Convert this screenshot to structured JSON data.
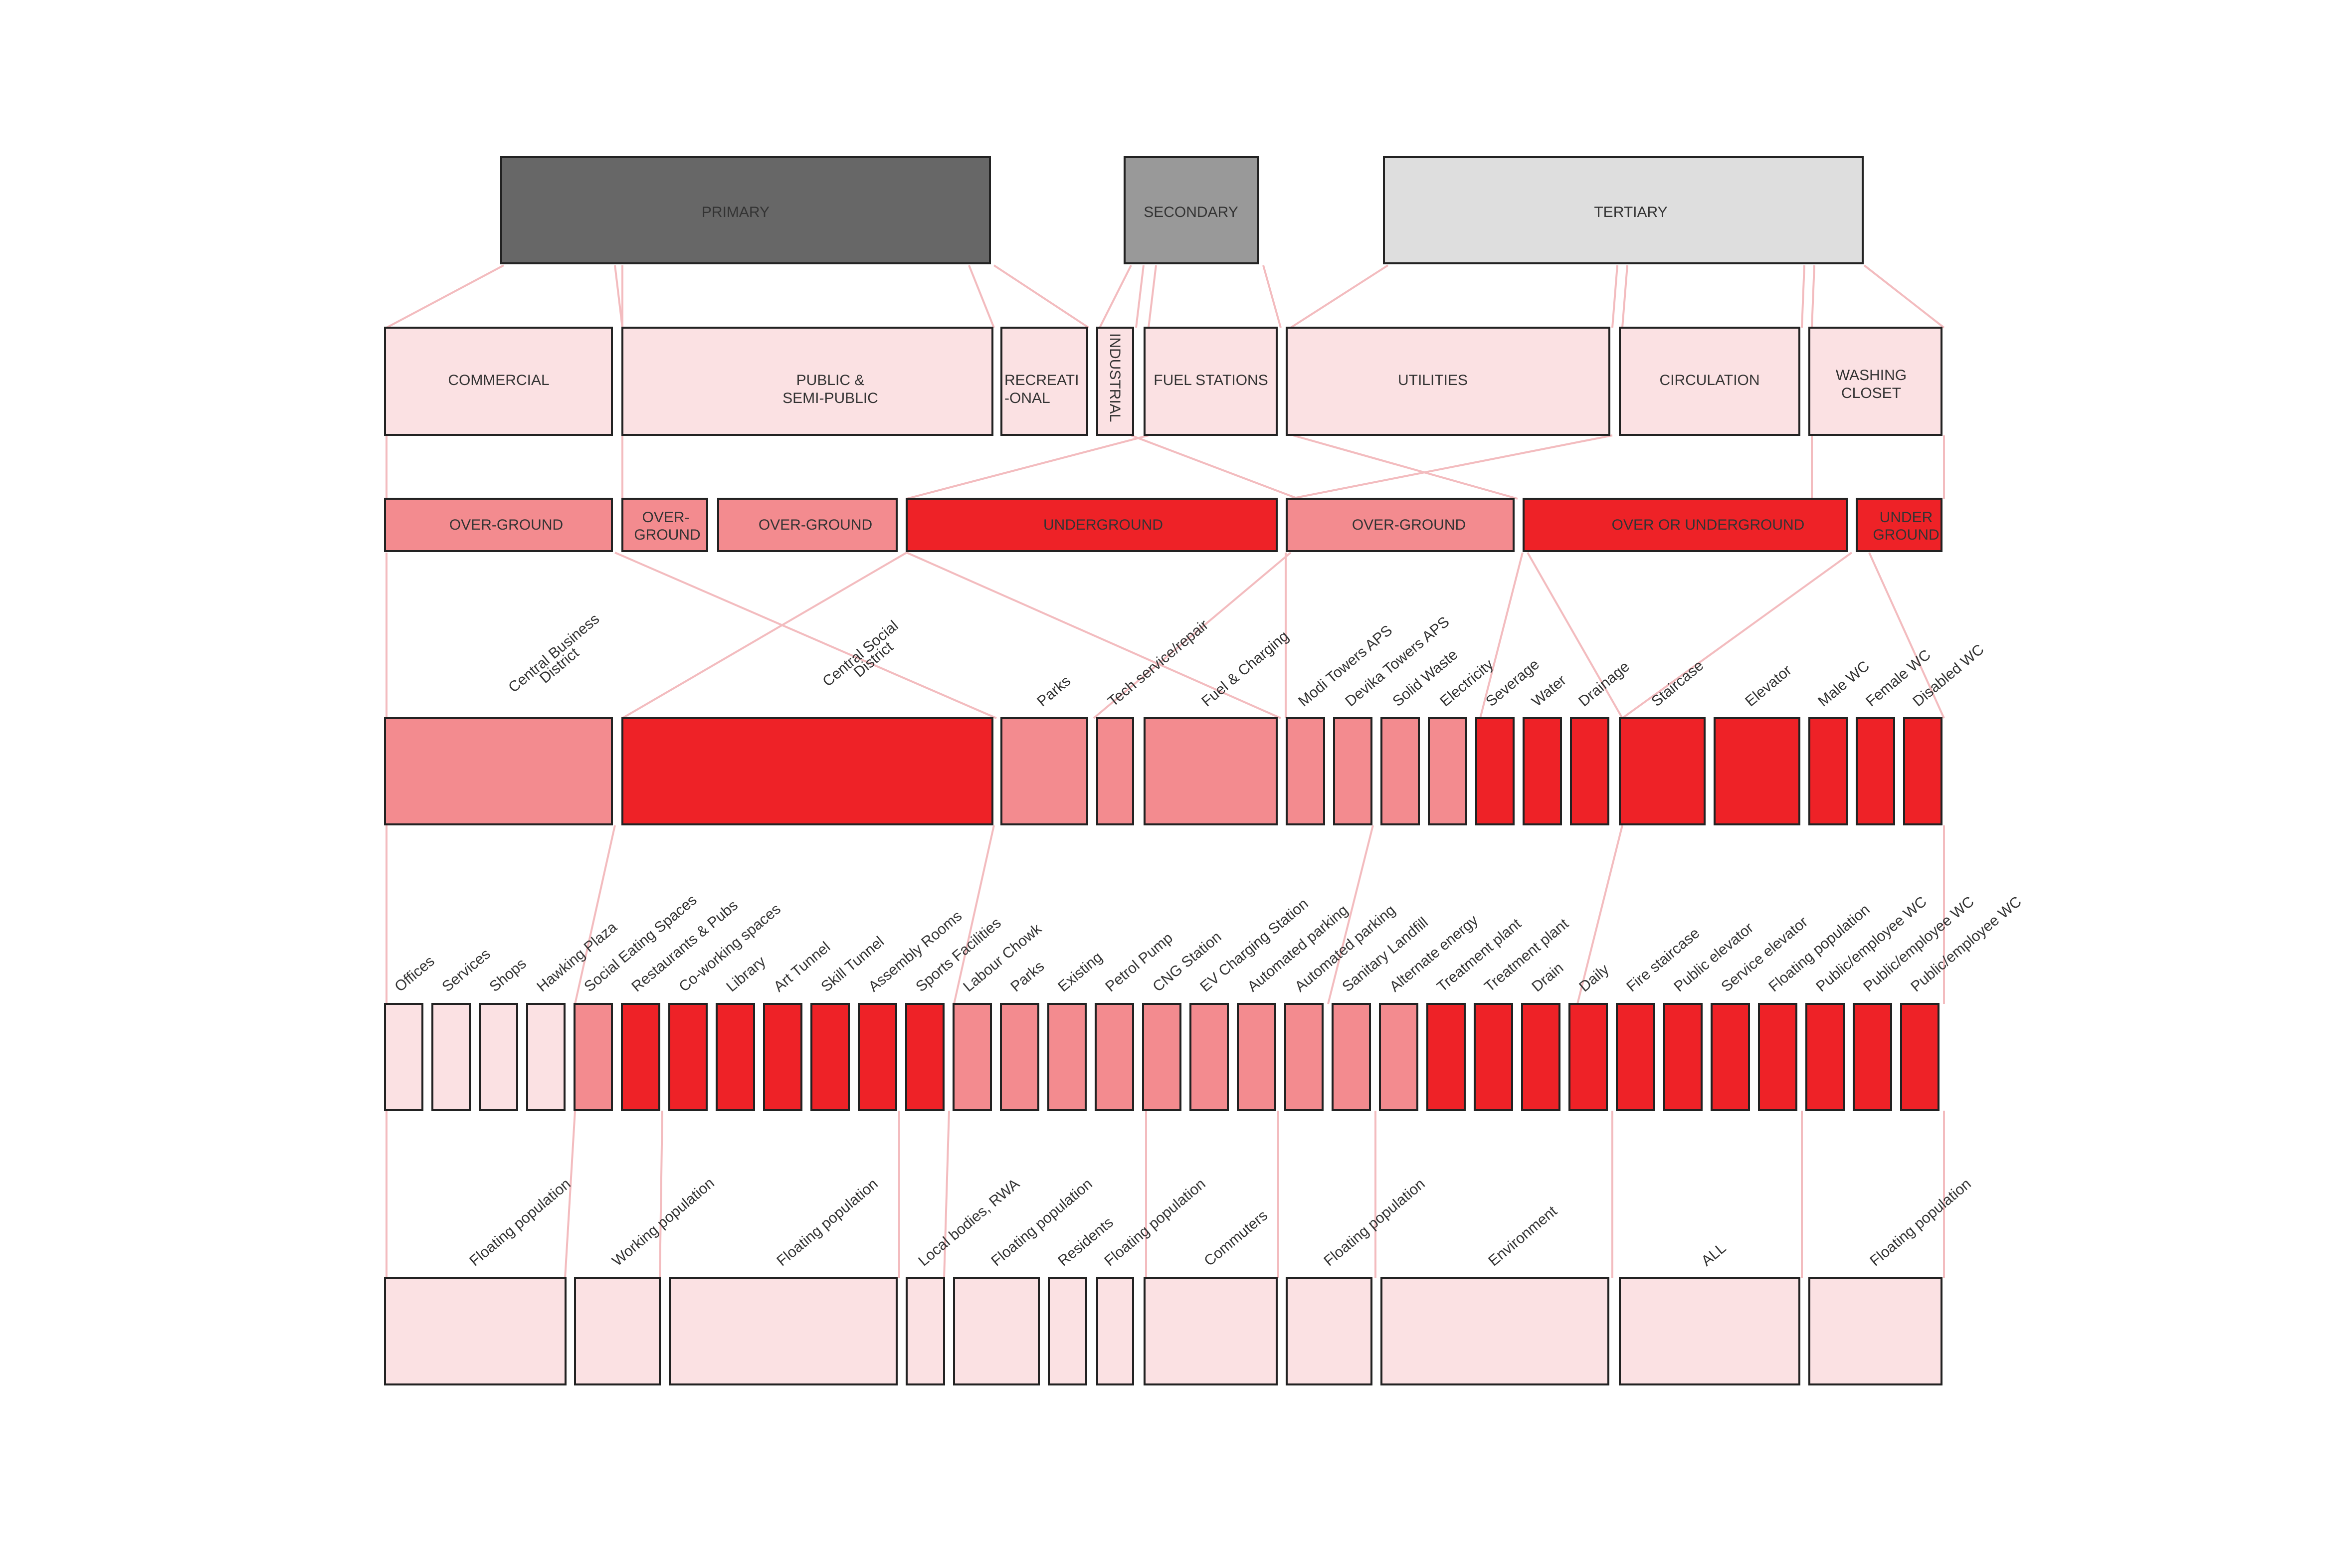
{
  "colors": {
    "primary": "#676767",
    "secondary": "#999999",
    "tertiary": "#dedede",
    "light": "#fbe1e3",
    "medium": "#f38b8f",
    "strong": "#ee2227",
    "line": "#f3bcbf",
    "stroke": "#222222"
  },
  "tiers": {
    "primary": "PRIMARY",
    "secondary": "SECONDARY",
    "tertiary": "TERTIARY"
  },
  "categories": {
    "commercial": "COMMERCIAL",
    "public_line1": "PUBLIC &",
    "public_line2": "SEMI-PUBLIC",
    "recreational_line1": "RECREATI",
    "recreational_line2": "-ONAL",
    "industrial": "INDUSTRIAL",
    "fuel_stations": "FUEL STATIONS",
    "utilities": "UTILITIES",
    "circulation": "CIRCULATION",
    "washing_line1": "WASHING",
    "washing_line2": "CLOSET"
  },
  "levels": {
    "l1": "OVER-GROUND",
    "l2_line1": "OVER-",
    "l2_line2": "GROUND",
    "l3": "OVER-GROUND",
    "l4": "UNDERGROUND",
    "l5": "OVER-GROUND",
    "l6": "OVER OR UNDERGROUND",
    "l7_line1": "UNDER",
    "l7_line2": "GROUND"
  },
  "zones": [
    {
      "line1": "Central Business",
      "line2": "District"
    },
    {
      "line1": "Central Social",
      "line2": "District"
    },
    {
      "line1": "Parks"
    },
    {
      "line1": "Tech service/repair"
    },
    {
      "line1": "Fuel & Charging"
    },
    {
      "line1": "Modi Towers APS"
    },
    {
      "line1": "Devika Towers APS"
    },
    {
      "line1": "Solid Waste"
    },
    {
      "line1": "Electricity"
    },
    {
      "line1": "Severage"
    },
    {
      "line1": "Water"
    },
    {
      "line1": "Drainage"
    },
    {
      "line1": "Staircase"
    },
    {
      "line1": "Elevator"
    },
    {
      "line1": "Male WC"
    },
    {
      "line1": "Female WC"
    },
    {
      "line1": "Disabled WC"
    }
  ],
  "facilities": [
    "Offices",
    "Services",
    "Shops",
    "Hawking Plaza",
    "Social Eating Spaces",
    "Restaurants & Pubs",
    "Co-working spaces",
    "Library",
    "Art Tunnel",
    "Skill Tunnel",
    "Assembly Rooms",
    "Sports Facilities",
    "Labour Chowk",
    "Parks",
    "Existing",
    "Petrol Pump",
    "CNG Station",
    "EV Charging Station",
    "Automated parking",
    "Automated parking",
    "Sanitary Landfill",
    "Alternate energy",
    "Treatment plant",
    "Treatment plant",
    "Drain",
    "Daily",
    "Fire staircase",
    "Public elevator",
    "Service elevator",
    "Floating population",
    "Public/employee WC",
    "Public/employee WC",
    "Public/employee WC"
  ],
  "users": [
    "Floating population",
    "Working population",
    "Floating population",
    "Local bodies, RWA",
    "Floating population",
    "Residents",
    "Floating population",
    "Commuters",
    "Floating population",
    "Environment",
    "ALL",
    "Floating population"
  ]
}
